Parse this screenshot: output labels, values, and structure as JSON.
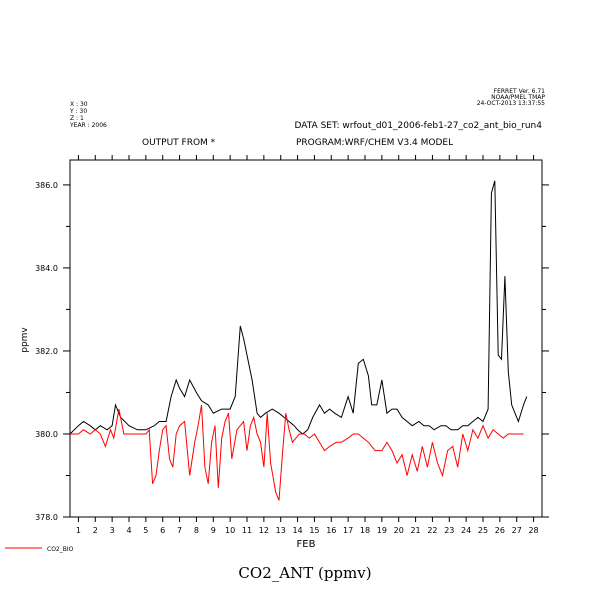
{
  "ferret_stamp": {
    "line1": "FERRET Ver. 6.71",
    "line2": "NOAA/PMEL TMAP",
    "line3": "24-OCT-2013 13:37:55"
  },
  "coords": {
    "x": "X : 30",
    "y": "Y : 30",
    "z": "Z : 1",
    "year": "YEAR : 2006"
  },
  "dataset": "DATA SET: wrfout_d01_2006-feb1-27_co2_ant_bio_run4",
  "output_from": "OUTPUT FROM *",
  "program": "PROGRAM:WRF/CHEM V3.4 MODEL",
  "legend_label": "CO2_BIO",
  "colors": {
    "ant": "#000000",
    "bio": "#ff0000"
  },
  "chart_data": {
    "type": "line",
    "title": "CO2_ANT (ppmv)",
    "xlabel": "FEB",
    "ylabel": "ppmv",
    "xlim": [
      0.5,
      28.5
    ],
    "ylim": [
      378.0,
      386.6
    ],
    "x_ticks": [
      "1",
      "2",
      "3",
      "4",
      "5",
      "6",
      "7",
      "8",
      "9",
      "10",
      "11",
      "12",
      "13",
      "14",
      "15",
      "16",
      "17",
      "18",
      "19",
      "20",
      "21",
      "22",
      "23",
      "24",
      "25",
      "26",
      "27",
      "28"
    ],
    "y_ticks": [
      "378.0",
      "380.0",
      "382.0",
      "384.0",
      "386.0"
    ],
    "y_tick_values": [
      378,
      380,
      382,
      384,
      386
    ],
    "grid": false,
    "legend": "bottom-left",
    "series": [
      {
        "name": "",
        "color": "#000000",
        "x": [
          0.5,
          1.0,
          1.3,
          1.7,
          2.0,
          2.3,
          2.7,
          3.0,
          3.2,
          3.5,
          4.0,
          4.5,
          5.0,
          5.5,
          5.8,
          6.2,
          6.5,
          6.8,
          7.0,
          7.3,
          7.6,
          8.0,
          8.3,
          8.7,
          9.0,
          9.5,
          10.0,
          10.3,
          10.6,
          10.8,
          11.0,
          11.3,
          11.6,
          11.8,
          12.1,
          12.5,
          12.9,
          13.2,
          13.5,
          13.8,
          14.0,
          14.3,
          14.6,
          14.9,
          15.3,
          15.6,
          15.9,
          16.2,
          16.6,
          17.0,
          17.3,
          17.6,
          17.9,
          18.2,
          18.4,
          18.7,
          19.0,
          19.3,
          19.6,
          19.9,
          20.2,
          20.5,
          20.8,
          21.2,
          21.5,
          21.8,
          22.1,
          22.5,
          22.8,
          23.1,
          23.5,
          23.8,
          24.1,
          24.4,
          24.7,
          25.0,
          25.3,
          25.5,
          25.7,
          25.9,
          26.1,
          26.3,
          26.5,
          26.7,
          26.9,
          27.1,
          27.4,
          27.6
        ],
        "y": [
          380.0,
          380.2,
          380.3,
          380.2,
          380.1,
          380.2,
          380.1,
          380.2,
          380.7,
          380.4,
          380.2,
          380.1,
          380.1,
          380.2,
          380.3,
          380.3,
          380.9,
          381.3,
          381.1,
          380.9,
          381.3,
          381.0,
          380.8,
          380.7,
          380.5,
          380.6,
          380.6,
          380.9,
          382.6,
          382.3,
          381.9,
          381.3,
          380.5,
          380.4,
          380.5,
          380.6,
          380.5,
          380.4,
          380.3,
          380.2,
          380.1,
          380.0,
          380.1,
          380.4,
          380.7,
          380.5,
          380.6,
          380.5,
          380.4,
          380.9,
          380.5,
          381.7,
          381.8,
          381.4,
          380.7,
          380.7,
          381.3,
          380.5,
          380.6,
          380.6,
          380.4,
          380.3,
          380.2,
          380.3,
          380.2,
          380.2,
          380.1,
          380.2,
          380.2,
          380.1,
          380.1,
          380.2,
          380.2,
          380.3,
          380.4,
          380.3,
          380.6,
          385.8,
          386.1,
          381.9,
          381.8,
          383.8,
          381.5,
          380.7,
          380.5,
          380.3,
          380.7,
          380.9
        ]
      },
      {
        "name": "CO2_BIO",
        "color": "#ff0000",
        "x": [
          0.5,
          1.0,
          1.3,
          1.7,
          2.0,
          2.3,
          2.6,
          2.9,
          3.1,
          3.4,
          3.7,
          4.0,
          4.5,
          5.0,
          5.2,
          5.4,
          5.6,
          5.8,
          6.0,
          6.2,
          6.4,
          6.6,
          6.8,
          7.0,
          7.3,
          7.6,
          7.9,
          8.1,
          8.3,
          8.5,
          8.7,
          8.9,
          9.1,
          9.3,
          9.5,
          9.7,
          9.9,
          10.1,
          10.4,
          10.6,
          10.8,
          11.0,
          11.2,
          11.4,
          11.6,
          11.8,
          12.0,
          12.2,
          12.4,
          12.7,
          12.9,
          13.1,
          13.3,
          13.5,
          13.7,
          13.9,
          14.1,
          14.4,
          14.7,
          15.0,
          15.3,
          15.6,
          15.9,
          16.3,
          16.6,
          17.0,
          17.3,
          17.6,
          17.9,
          18.2,
          18.6,
          19.0,
          19.3,
          19.6,
          19.9,
          20.2,
          20.5,
          20.8,
          21.1,
          21.4,
          21.7,
          22.0,
          22.3,
          22.6,
          22.9,
          23.2,
          23.5,
          23.8,
          24.1,
          24.4,
          24.7,
          25.0,
          25.3,
          25.6,
          25.9,
          26.2,
          26.5,
          26.8,
          27.1,
          27.4
        ],
        "y": [
          380.0,
          380.0,
          380.1,
          380.0,
          380.1,
          380.0,
          379.7,
          380.1,
          379.9,
          380.6,
          380.0,
          380.0,
          380.0,
          380.0,
          380.1,
          378.8,
          379.0,
          379.6,
          380.1,
          380.2,
          379.4,
          379.2,
          380.0,
          380.2,
          380.3,
          379.0,
          379.8,
          380.2,
          380.7,
          379.2,
          378.8,
          379.8,
          380.2,
          378.7,
          379.9,
          380.3,
          380.5,
          379.4,
          380.1,
          380.2,
          380.3,
          379.6,
          380.2,
          380.4,
          380.0,
          379.8,
          379.2,
          380.5,
          379.3,
          378.6,
          378.4,
          379.5,
          380.5,
          380.1,
          379.8,
          379.9,
          380.0,
          380.0,
          379.9,
          380.0,
          379.8,
          379.6,
          379.7,
          379.8,
          379.8,
          379.9,
          380.0,
          380.0,
          379.9,
          379.8,
          379.6,
          379.6,
          379.8,
          379.6,
          379.3,
          379.5,
          379.0,
          379.5,
          379.1,
          379.7,
          379.2,
          379.8,
          379.3,
          379.0,
          379.6,
          379.7,
          379.2,
          380.0,
          379.6,
          380.1,
          379.9,
          380.2,
          379.9,
          380.1,
          380.0,
          379.9,
          380.0,
          380.0,
          380.0,
          380.0
        ]
      }
    ]
  }
}
